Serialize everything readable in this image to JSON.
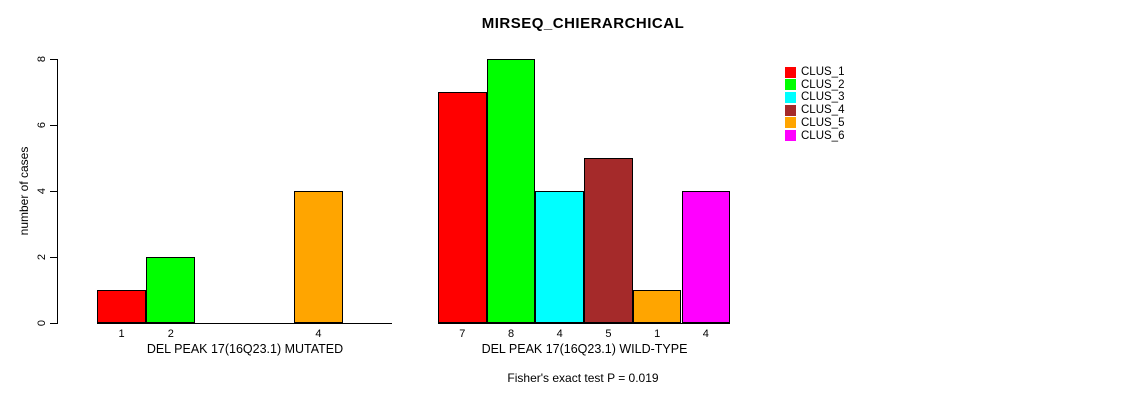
{
  "chart_data": {
    "type": "bar",
    "title": "MIRSEQ_CHIERARCHICAL",
    "ylabel": "number of cases",
    "ylim": [
      0,
      8
    ],
    "yticks": [
      0,
      2,
      4,
      6,
      8
    ],
    "grid": false,
    "legend_position": "top-right-outside",
    "legend": [
      {
        "label": "CLUS_1",
        "color": "#FF0000"
      },
      {
        "label": "CLUS_2",
        "color": "#00FF00"
      },
      {
        "label": "CLUS_3",
        "color": "#00FFFF"
      },
      {
        "label": "CLUS_4",
        "color": "#A52A2A"
      },
      {
        "label": "CLUS_5",
        "color": "#FFA500"
      },
      {
        "label": "CLUS_6",
        "color": "#FF00FF"
      }
    ],
    "groups": [
      {
        "xlabel": "DEL PEAK 17(16Q23.1) MUTATED",
        "categories": [
          "CLUS_1",
          "CLUS_2",
          "CLUS_3",
          "CLUS_4",
          "CLUS_5",
          "CLUS_6"
        ],
        "values": [
          1,
          2,
          0,
          0,
          4,
          0
        ],
        "bar_labels": [
          "1",
          "2",
          "",
          "",
          "4",
          ""
        ]
      },
      {
        "xlabel": "DEL PEAK 17(16Q23.1) WILD-TYPE",
        "categories": [
          "CLUS_1",
          "CLUS_2",
          "CLUS_3",
          "CLUS_4",
          "CLUS_5",
          "CLUS_6"
        ],
        "values": [
          7,
          8,
          4,
          5,
          1,
          4
        ],
        "bar_labels": [
          "7",
          "8",
          "4",
          "5",
          "1",
          "4"
        ]
      }
    ],
    "annotation": "Fisher's exact test P = 0.019",
    "axis_color": "#000000",
    "background_color": "#FFFFFF"
  }
}
